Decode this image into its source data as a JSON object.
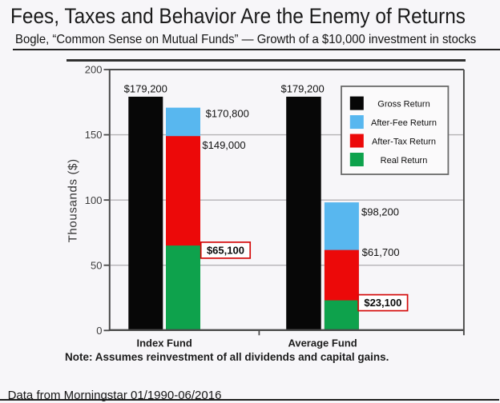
{
  "slide": {
    "title": "Fees, Taxes and Behavior Are the Enemy of Returns",
    "subtitle": "Bogle, “Common Sense on Mutual Funds” — Growth of a $10,000 investment in stocks",
    "note": "Note: Assumes reinvestment of all dividends and capital gains.",
    "source": "Data from Morningstar 01/1990-06/2016"
  },
  "chart_data": {
    "type": "bar",
    "title": "",
    "xlabel": "",
    "ylabel": "Thousands ($)",
    "ylim": [
      0,
      200
    ],
    "yticks": [
      0,
      50,
      100,
      150,
      200
    ],
    "grid": "horizontal gridlines at 50, 100 and 150; y values plotted in thousands of dollars",
    "legend_position": "upper right",
    "categories": [
      "Index Fund",
      "Average Fund"
    ],
    "structure": "Per category: one solid Gross Return bar, plus one stacked bar showing cumulative After-Fee (blue, top), After-Tax (red, middle) and Real (green, bottom) returns",
    "series": [
      {
        "name": "Gross Return",
        "color": "#070707",
        "values": [
          179200,
          179200
        ],
        "labels": [
          "$179,200",
          "$179,200"
        ]
      },
      {
        "name": "After-Fee Return",
        "color": "#58b7ef",
        "values": [
          170800,
          98200
        ],
        "labels": [
          "$170,800",
          "$98,200"
        ]
      },
      {
        "name": "After-Tax Return",
        "color": "#ec0909",
        "values": [
          149000,
          61700
        ],
        "labels": [
          "$149,000",
          "$61,700"
        ]
      },
      {
        "name": "Real Return",
        "color": "#0ea24c",
        "values": [
          65100,
          23100
        ],
        "labels": [
          "$65,100",
          "$23,100"
        ],
        "boxed": true
      }
    ],
    "colors": {
      "spine": "#4a4a4a",
      "grid": "#b4b2b5",
      "tick_label": "#3e3e3e",
      "category_label": "#1c1c1c",
      "value_label": "#111111",
      "box_border": "#d40b0b",
      "legend_border": "#6a6a6a",
      "legend_fill": "#fbfafb"
    }
  }
}
